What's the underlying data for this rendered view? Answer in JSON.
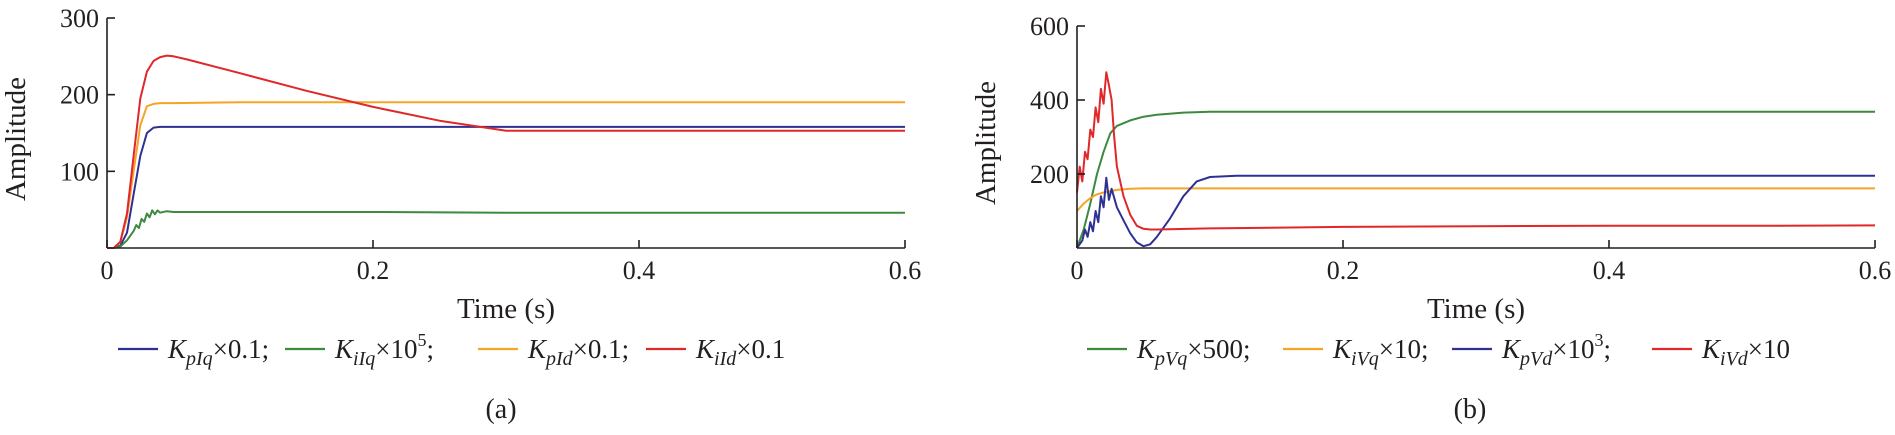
{
  "colors": {
    "blue": "#2e3192",
    "green": "#3b8a3e",
    "orange": "#f7a325",
    "red": "#e0282b",
    "axis": "#231f20"
  },
  "chart_data": [
    {
      "type": "line",
      "panel_label": "(a)",
      "xlabel": "Time (s)",
      "ylabel": "Amplitude",
      "xlim": [
        0,
        0.6
      ],
      "ylim": [
        0,
        300
      ],
      "xticks": [
        "0",
        "0.2",
        "0.4",
        "0.6"
      ],
      "yticks": [
        "100",
        "200",
        "300"
      ],
      "xtick_values": [
        0,
        0.2,
        0.4,
        0.6
      ],
      "ytick_values": [
        100,
        200,
        300
      ],
      "grid": false,
      "legend_position": "bottom",
      "series": [
        {
          "name": "K_pIq ×0.1",
          "legend": {
            "base": "K",
            "sub": "pIq",
            "mult": "×0.1",
            "sup": "",
            "sep": ";"
          },
          "color": "#2e3192",
          "x": [
            0,
            0.005,
            0.01,
            0.015,
            0.02,
            0.025,
            0.03,
            0.035,
            0.04,
            0.05,
            0.1,
            0.2,
            0.3,
            0.4,
            0.5,
            0.6
          ],
          "y": [
            0,
            0,
            3,
            20,
            70,
            120,
            150,
            157,
            158,
            158,
            158,
            158,
            158,
            158,
            158,
            158
          ]
        },
        {
          "name": "K_iIq ×10^5",
          "legend": {
            "base": "K",
            "sub": "iIq",
            "mult": "×10",
            "sup": "5",
            "sep": ";"
          },
          "color": "#3b8a3e",
          "x": [
            0,
            0.005,
            0.01,
            0.015,
            0.02,
            0.022,
            0.024,
            0.026,
            0.028,
            0.03,
            0.032,
            0.034,
            0.036,
            0.038,
            0.04,
            0.045,
            0.05,
            0.1,
            0.2,
            0.3,
            0.4,
            0.5,
            0.6
          ],
          "y": [
            0,
            0,
            2,
            10,
            22,
            30,
            26,
            38,
            34,
            45,
            40,
            49,
            44,
            49,
            46,
            48,
            47,
            47,
            47,
            46,
            46,
            46,
            46
          ]
        },
        {
          "name": "K_pId ×0.1",
          "legend": {
            "base": "K",
            "sub": "pId",
            "mult": "×0.1",
            "sup": "",
            "sep": ";"
          },
          "color": "#f7a325",
          "x": [
            0,
            0.005,
            0.01,
            0.015,
            0.02,
            0.025,
            0.03,
            0.035,
            0.04,
            0.05,
            0.1,
            0.2,
            0.3,
            0.4,
            0.5,
            0.6
          ],
          "y": [
            0,
            0,
            8,
            40,
            100,
            160,
            185,
            188,
            189,
            189,
            190,
            190,
            190,
            190,
            190,
            190
          ]
        },
        {
          "name": "K_iId ×0.1",
          "legend": {
            "base": "K",
            "sub": "iId",
            "mult": "×0.1",
            "sup": "",
            "sep": ""
          },
          "color": "#e0282b",
          "x": [
            0,
            0.005,
            0.01,
            0.015,
            0.02,
            0.025,
            0.03,
            0.035,
            0.04,
            0.045,
            0.05,
            0.06,
            0.1,
            0.15,
            0.2,
            0.25,
            0.3,
            0.35,
            0.4,
            0.5,
            0.6
          ],
          "y": [
            0,
            0,
            8,
            45,
            120,
            195,
            230,
            244,
            249,
            251,
            250,
            246,
            228,
            205,
            184,
            166,
            153,
            153,
            153,
            153,
            153
          ]
        }
      ]
    },
    {
      "type": "line",
      "panel_label": "(b)",
      "xlabel": "Time (s)",
      "ylabel": "Amplitude",
      "xlim": [
        0,
        0.6
      ],
      "ylim": [
        0,
        600
      ],
      "xticks": [
        "0",
        "0.2",
        "0.4",
        "0.6"
      ],
      "yticks": [
        "200",
        "400",
        "600"
      ],
      "xtick_values": [
        0,
        0.2,
        0.4,
        0.6
      ],
      "ytick_values": [
        200,
        400,
        600
      ],
      "grid": false,
      "legend_position": "bottom",
      "series": [
        {
          "name": "K_pVq ×500",
          "legend": {
            "base": "K",
            "sub": "pVq",
            "mult": "×500",
            "sup": "",
            "sep": ";"
          },
          "color": "#3b8a3e",
          "x": [
            0,
            0.005,
            0.01,
            0.015,
            0.02,
            0.025,
            0.03,
            0.04,
            0.05,
            0.06,
            0.08,
            0.1,
            0.2,
            0.3,
            0.4,
            0.5,
            0.6
          ],
          "y": [
            0,
            50,
            120,
            200,
            260,
            310,
            330,
            345,
            355,
            360,
            366,
            368,
            368,
            368,
            368,
            368,
            368
          ]
        },
        {
          "name": "K_iVq ×10",
          "legend": {
            "base": "K",
            "sub": "iVq",
            "mult": "×10",
            "sup": "",
            "sep": ";"
          },
          "color": "#f7a325",
          "x": [
            0,
            0.005,
            0.01,
            0.015,
            0.02,
            0.03,
            0.04,
            0.05,
            0.1,
            0.2,
            0.3,
            0.4,
            0.5,
            0.6
          ],
          "y": [
            100,
            120,
            135,
            145,
            150,
            157,
            160,
            161,
            161,
            161,
            161,
            161,
            161,
            161
          ]
        },
        {
          "name": "K_pVd ×10^3",
          "legend": {
            "base": "K",
            "sub": "pVd",
            "mult": "×10",
            "sup": "3",
            "sep": ";"
          },
          "color": "#2e3192",
          "x": [
            0,
            0.004,
            0.006,
            0.008,
            0.01,
            0.012,
            0.014,
            0.016,
            0.018,
            0.02,
            0.022,
            0.024,
            0.026,
            0.03,
            0.035,
            0.04,
            0.045,
            0.05,
            0.055,
            0.06,
            0.07,
            0.08,
            0.09,
            0.1,
            0.12,
            0.2,
            0.3,
            0.4,
            0.5,
            0.6
          ],
          "y": [
            0,
            20,
            50,
            30,
            70,
            45,
            100,
            70,
            140,
            110,
            190,
            130,
            160,
            110,
            75,
            40,
            15,
            5,
            10,
            30,
            80,
            140,
            180,
            192,
            195,
            195,
            195,
            195,
            195,
            195
          ]
        },
        {
          "name": "K_iVd ×10",
          "legend": {
            "base": "K",
            "sub": "iVd",
            "mult": "×10",
            "sup": "",
            "sep": ""
          },
          "color": "#e0282b",
          "x": [
            0,
            0.002,
            0.004,
            0.006,
            0.008,
            0.01,
            0.012,
            0.014,
            0.016,
            0.018,
            0.02,
            0.022,
            0.024,
            0.026,
            0.028,
            0.03,
            0.035,
            0.04,
            0.045,
            0.05,
            0.055,
            0.06,
            0.1,
            0.2,
            0.3,
            0.4,
            0.5,
            0.6
          ],
          "y": [
            150,
            220,
            180,
            260,
            240,
            320,
            300,
            380,
            340,
            430,
            390,
            475,
            440,
            400,
            300,
            220,
            140,
            90,
            60,
            52,
            50,
            50,
            53,
            57,
            59,
            60,
            60,
            61
          ]
        }
      ]
    }
  ]
}
